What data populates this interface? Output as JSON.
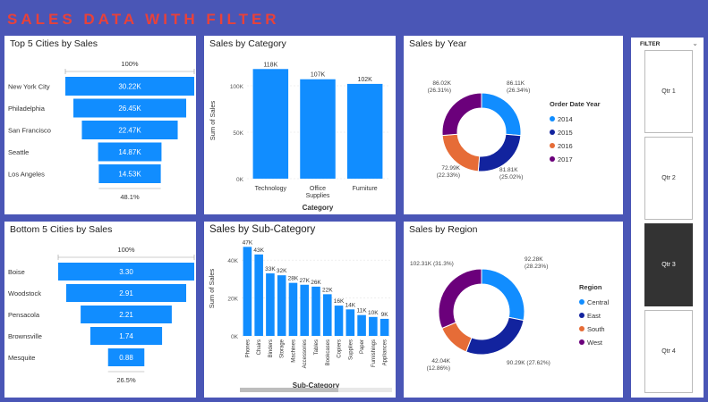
{
  "header": {
    "title": "SALES DATA WITH FILTER"
  },
  "colors": {
    "bar": "#118dff",
    "bg": "#4a56b6",
    "title": "#e8413a",
    "dark_blue": "#12239e",
    "orange": "#e66c37",
    "purple": "#6b007b"
  },
  "top5": {
    "title": "Top 5 Cities by Sales",
    "top_pct": "100%",
    "bottom_pct": "48.1%",
    "cities": [
      "New York City",
      "Philadelphia",
      "San Francisco",
      "Seattle",
      "Los Angeles"
    ],
    "labels": [
      "30.22K",
      "26.45K",
      "22.47K",
      "14.87K",
      "14.53K"
    ],
    "values": [
      30.22,
      26.45,
      22.47,
      14.87,
      14.53
    ]
  },
  "bottom5": {
    "title": "Bottom 5 Cities by Sales",
    "top_pct": "100%",
    "bottom_pct": "26.5%",
    "cities": [
      "Boise",
      "Woodstock",
      "Pensacola",
      "Brownsville",
      "Mesquite"
    ],
    "labels": [
      "3.30",
      "2.91",
      "2.21",
      "1.74",
      "0.88"
    ],
    "values": [
      3.3,
      2.91,
      2.21,
      1.74,
      0.88
    ]
  },
  "category": {
    "title": "Sales by Category",
    "ylabel": "Sum of Sales",
    "xlabel": "Category",
    "yticks": [
      "100K",
      "50K",
      "0K"
    ],
    "categories": [
      "Technology",
      "Office Supplies",
      "Furniture"
    ],
    "labels": [
      "118K",
      "107K",
      "102K"
    ],
    "values": [
      118,
      107,
      102
    ]
  },
  "year": {
    "title": "Sales by Year",
    "legend_title": "Order Date Year",
    "legend": [
      "2014",
      "2015",
      "2016",
      "2017"
    ],
    "values": [
      86.11,
      81.81,
      72.99,
      86.02
    ],
    "label_values": [
      "86.11K",
      "81.81K",
      "72.99K",
      "86.02K"
    ],
    "label_pcts": [
      "(26.34%)",
      "(25.02%)",
      "(22.33%)",
      "(26.31%)"
    ]
  },
  "subcat": {
    "title": "Sales by Sub-Category",
    "ylabel": "Sum of Sales",
    "xlabel": "Sub-Category",
    "yticks": [
      "40K",
      "20K",
      "0K"
    ],
    "categories": [
      "Phones",
      "Chairs",
      "Binders",
      "Storage",
      "Machines",
      "Accessories",
      "Tables",
      "Bookcases",
      "Copiers",
      "Supplies",
      "Paper",
      "Furnishings",
      "Appliances"
    ],
    "labels": [
      "47K",
      "43K",
      "33K",
      "32K",
      "28K",
      "27K",
      "26K",
      "22K",
      "16K",
      "14K",
      "11K",
      "10K",
      "9K"
    ],
    "values": [
      47,
      43,
      33,
      32,
      28,
      27,
      26,
      22,
      16,
      14,
      11,
      10,
      9
    ]
  },
  "region": {
    "title": "Sales by Region",
    "legend_title": "Region",
    "legend": [
      "Central",
      "East",
      "South",
      "West"
    ],
    "values": [
      92.28,
      90.29,
      42.04,
      102.31
    ],
    "labels": [
      "92.28K",
      "90.29K (27.62%)",
      "42.04K",
      "102.31K (31.3%)"
    ],
    "sublabels": [
      "(28.23%)",
      "",
      "(12.86%)",
      ""
    ]
  },
  "slicer": {
    "title": "FILTER",
    "chevron": "⌄",
    "items": [
      "Qtr 1",
      "Qtr 2",
      "Qtr 3",
      "Qtr 4"
    ],
    "selected": "Qtr 3"
  },
  "chart_data": [
    {
      "type": "bar",
      "title": "Top 5 Cities by Sales",
      "categories": [
        "New York City",
        "Philadelphia",
        "San Francisco",
        "Seattle",
        "Los Angeles"
      ],
      "values": [
        30.22,
        26.45,
        22.47,
        14.87,
        14.53
      ]
    },
    {
      "type": "bar",
      "title": "Bottom 5 Cities by Sales",
      "categories": [
        "Boise",
        "Woodstock",
        "Pensacola",
        "Brownsville",
        "Mesquite"
      ],
      "values": [
        3.3,
        2.91,
        2.21,
        1.74,
        0.88
      ]
    },
    {
      "type": "bar",
      "title": "Sales by Category",
      "categories": [
        "Technology",
        "Office Supplies",
        "Furniture"
      ],
      "values": [
        118,
        107,
        102
      ],
      "xlabel": "Category",
      "ylabel": "Sum of Sales",
      "ylim": [
        0,
        125
      ]
    },
    {
      "type": "pie",
      "title": "Sales by Year",
      "categories": [
        "2014",
        "2015",
        "2016",
        "2017"
      ],
      "values": [
        86.11,
        81.81,
        72.99,
        86.02
      ]
    },
    {
      "type": "bar",
      "title": "Sales by Sub-Category",
      "categories": [
        "Phones",
        "Chairs",
        "Binders",
        "Storage",
        "Machines",
        "Accessories",
        "Tables",
        "Bookcases",
        "Copiers",
        "Supplies",
        "Paper",
        "Furnishings",
        "Appliances"
      ],
      "values": [
        47,
        43,
        33,
        32,
        28,
        27,
        26,
        22,
        16,
        14,
        11,
        10,
        9
      ],
      "xlabel": "Sub-Category",
      "ylabel": "Sum of Sales",
      "ylim": [
        0,
        50
      ]
    },
    {
      "type": "pie",
      "title": "Sales by Region",
      "categories": [
        "Central",
        "East",
        "South",
        "West"
      ],
      "values": [
        92.28,
        90.29,
        42.04,
        102.31
      ]
    }
  ]
}
